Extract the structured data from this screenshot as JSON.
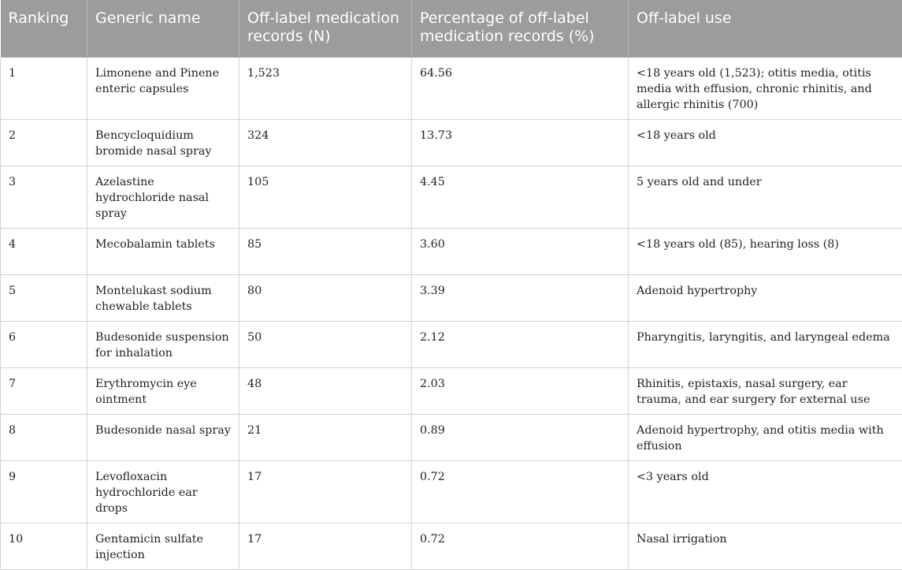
{
  "table": {
    "headers": [
      "Ranking",
      "Generic name",
      "Off-label medication records (N)",
      "Percentage of off-label medication records (%)",
      "Off-label use"
    ],
    "rows": [
      [
        "1",
        "Limonene and Pinene enteric capsules",
        "1,523",
        "64.56",
        "<18 years old (1,523); otitis media, otitis media with effusion, chronic rhinitis, and allergic rhinitis (700)"
      ],
      [
        "2",
        "Bencycloquidium bromide nasal spray",
        "324",
        "13.73",
        "<18 years old"
      ],
      [
        "3",
        "Azelastine hydrochloride nasal spray",
        "105",
        "4.45",
        "5 years old and under"
      ],
      [
        "4",
        "Mecobalamin tablets",
        "85",
        "3.60",
        "<18 years old (85), hearing loss (8)"
      ],
      [
        "5",
        "Montelukast sodium chewable tablets",
        "80",
        "3.39",
        "Adenoid hypertrophy"
      ],
      [
        "6",
        "Budesonide suspension for inhalation",
        "50",
        "2.12",
        "Pharyngitis, laryngitis, and laryngeal edema"
      ],
      [
        "7",
        "Erythromycin eye ointment",
        "48",
        "2.03",
        "Rhinitis, epistaxis, nasal surgery, ear trauma, and ear surgery for external use"
      ],
      [
        "8",
        "Budesonide nasal spray",
        "21",
        "0.89",
        "Adenoid hypertrophy, and otitis media with effusion"
      ],
      [
        "9",
        "Levofloxacin hydrochloride ear drops",
        "17",
        "0.72",
        "<3 years old"
      ],
      [
        "10",
        "Gentamicin sulfate injection",
        "17",
        "0.72",
        "Nasal irrigation"
      ]
    ]
  }
}
